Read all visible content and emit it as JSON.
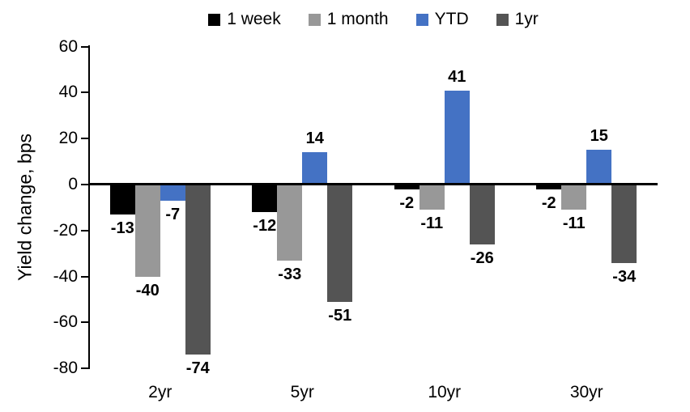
{
  "chart_data": {
    "type": "bar",
    "title": "",
    "ylabel": "Yield change, bps",
    "xlabel": "",
    "categories": [
      "2yr",
      "5yr",
      "10yr",
      "30yr"
    ],
    "series": [
      {
        "name": "1 week",
        "color": "#000000",
        "values": [
          -13,
          -12,
          -2,
          -2
        ]
      },
      {
        "name": "1 month",
        "color": "#989898",
        "values": [
          -40,
          -33,
          -11,
          -11
        ]
      },
      {
        "name": "YTD",
        "color": "#4472C4",
        "values": [
          -7,
          14,
          41,
          15
        ]
      },
      {
        "name": "1yr",
        "color": "#545454",
        "values": [
          -74,
          -51,
          -26,
          -34
        ]
      }
    ],
    "ylim": [
      -80,
      60
    ],
    "yticks": [
      60,
      40,
      20,
      0,
      -20,
      -40,
      -60,
      -80
    ],
    "grid": false,
    "legend_position": "top",
    "data_labels": true,
    "axis_color": "#000000"
  }
}
